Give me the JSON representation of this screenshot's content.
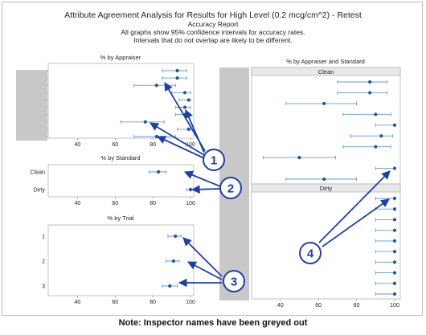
{
  "header": {
    "title": "Attribute Agreement Analysis for Results for High Level (0.2 mcg/cm^2) - Retest",
    "subtitle": "Accuracy Report",
    "note_line1": "All graphs show 95% confidence intervals for accuracy rates.",
    "note_line2": "Intervals that do not overlap are likely to be different."
  },
  "footer_note": "Note: Inspector names have been greyed out",
  "colors": {
    "marker": "#1f5a9e",
    "interval": "#6a9bd0",
    "callout": "#1f3fa8",
    "grey_bar": "#c8c8c8",
    "panel_border": "#b4b4b4"
  },
  "callouts": [
    "1",
    "2",
    "3",
    "4"
  ],
  "chart_data": [
    {
      "id": "appraiser",
      "type": "scatter",
      "title": "% by Appraiser",
      "xlim": [
        30,
        100
      ],
      "xticks": [
        "40",
        "60",
        "80",
        "100"
      ],
      "xtick_values": [
        40,
        60,
        80,
        100
      ],
      "ylabels_note": "appraiser names greyed out",
      "points": [
        {
          "x": 93,
          "lo": 85,
          "hi": 98
        },
        {
          "x": 93,
          "lo": 85,
          "hi": 98
        },
        {
          "x": 82,
          "lo": 70,
          "hi": 92
        },
        {
          "x": 97,
          "lo": 90,
          "hi": 100
        },
        {
          "x": 99,
          "lo": 94,
          "hi": 100
        },
        {
          "x": 97,
          "lo": 92,
          "hi": 100
        },
        {
          "x": 97,
          "lo": 92,
          "hi": 100
        },
        {
          "x": 76,
          "lo": 63,
          "hi": 86
        },
        {
          "x": 99,
          "lo": 93,
          "hi": 100
        },
        {
          "x": 82,
          "lo": 70,
          "hi": 92
        }
      ]
    },
    {
      "id": "standard",
      "type": "scatter",
      "title": "% by Standard",
      "xlim": [
        30,
        100
      ],
      "xticks": [
        "40",
        "60",
        "80",
        "100"
      ],
      "xtick_values": [
        40,
        60,
        80,
        100
      ],
      "categories": [
        "Clean",
        "Dirty"
      ],
      "points": [
        {
          "x": 83,
          "lo": 78,
          "hi": 87
        },
        {
          "x": 100,
          "lo": 98,
          "hi": 100
        }
      ]
    },
    {
      "id": "trial",
      "type": "scatter",
      "title": "% by Trial",
      "xlim": [
        30,
        100
      ],
      "xticks": [
        "40",
        "60",
        "80",
        "100"
      ],
      "xtick_values": [
        40,
        60,
        80,
        100
      ],
      "categories": [
        "1",
        "2",
        "3"
      ],
      "points": [
        {
          "x": 92,
          "lo": 88,
          "hi": 95
        },
        {
          "x": 91,
          "lo": 87,
          "hi": 94
        },
        {
          "x": 89,
          "lo": 85,
          "hi": 93
        }
      ]
    },
    {
      "id": "appraiser_standard",
      "type": "scatter",
      "title": "% by Appraiser and Standard",
      "xlim": [
        30,
        100
      ],
      "xticks": [
        "40",
        "60",
        "80",
        "100"
      ],
      "xtick_values": [
        40,
        60,
        80,
        100
      ],
      "panels": [
        {
          "name": "Clean",
          "points": [
            {
              "x": 87,
              "lo": 70,
              "hi": 96
            },
            {
              "x": 87,
              "lo": 70,
              "hi": 96
            },
            {
              "x": 63,
              "lo": 43,
              "hi": 80
            },
            {
              "x": 90,
              "lo": 73,
              "hi": 98
            },
            {
              "x": 100,
              "lo": 90,
              "hi": 100
            },
            {
              "x": 93,
              "lo": 77,
              "hi": 99
            },
            {
              "x": 90,
              "lo": 73,
              "hi": 98
            },
            {
              "x": 50,
              "lo": 31,
              "hi": 69
            },
            {
              "x": 100,
              "lo": 90,
              "hi": 100
            },
            {
              "x": 63,
              "lo": 43,
              "hi": 80
            }
          ]
        },
        {
          "name": "Dirty",
          "points": [
            {
              "x": 100,
              "lo": 90,
              "hi": 100
            },
            {
              "x": 100,
              "lo": 90,
              "hi": 100
            },
            {
              "x": 100,
              "lo": 90,
              "hi": 100
            },
            {
              "x": 100,
              "lo": 90,
              "hi": 100
            },
            {
              "x": 100,
              "lo": 90,
              "hi": 100
            },
            {
              "x": 100,
              "lo": 90,
              "hi": 100
            },
            {
              "x": 100,
              "lo": 90,
              "hi": 100
            },
            {
              "x": 100,
              "lo": 90,
              "hi": 100
            },
            {
              "x": 100,
              "lo": 90,
              "hi": 100
            },
            {
              "x": 100,
              "lo": 90,
              "hi": 100
            }
          ]
        }
      ]
    }
  ]
}
